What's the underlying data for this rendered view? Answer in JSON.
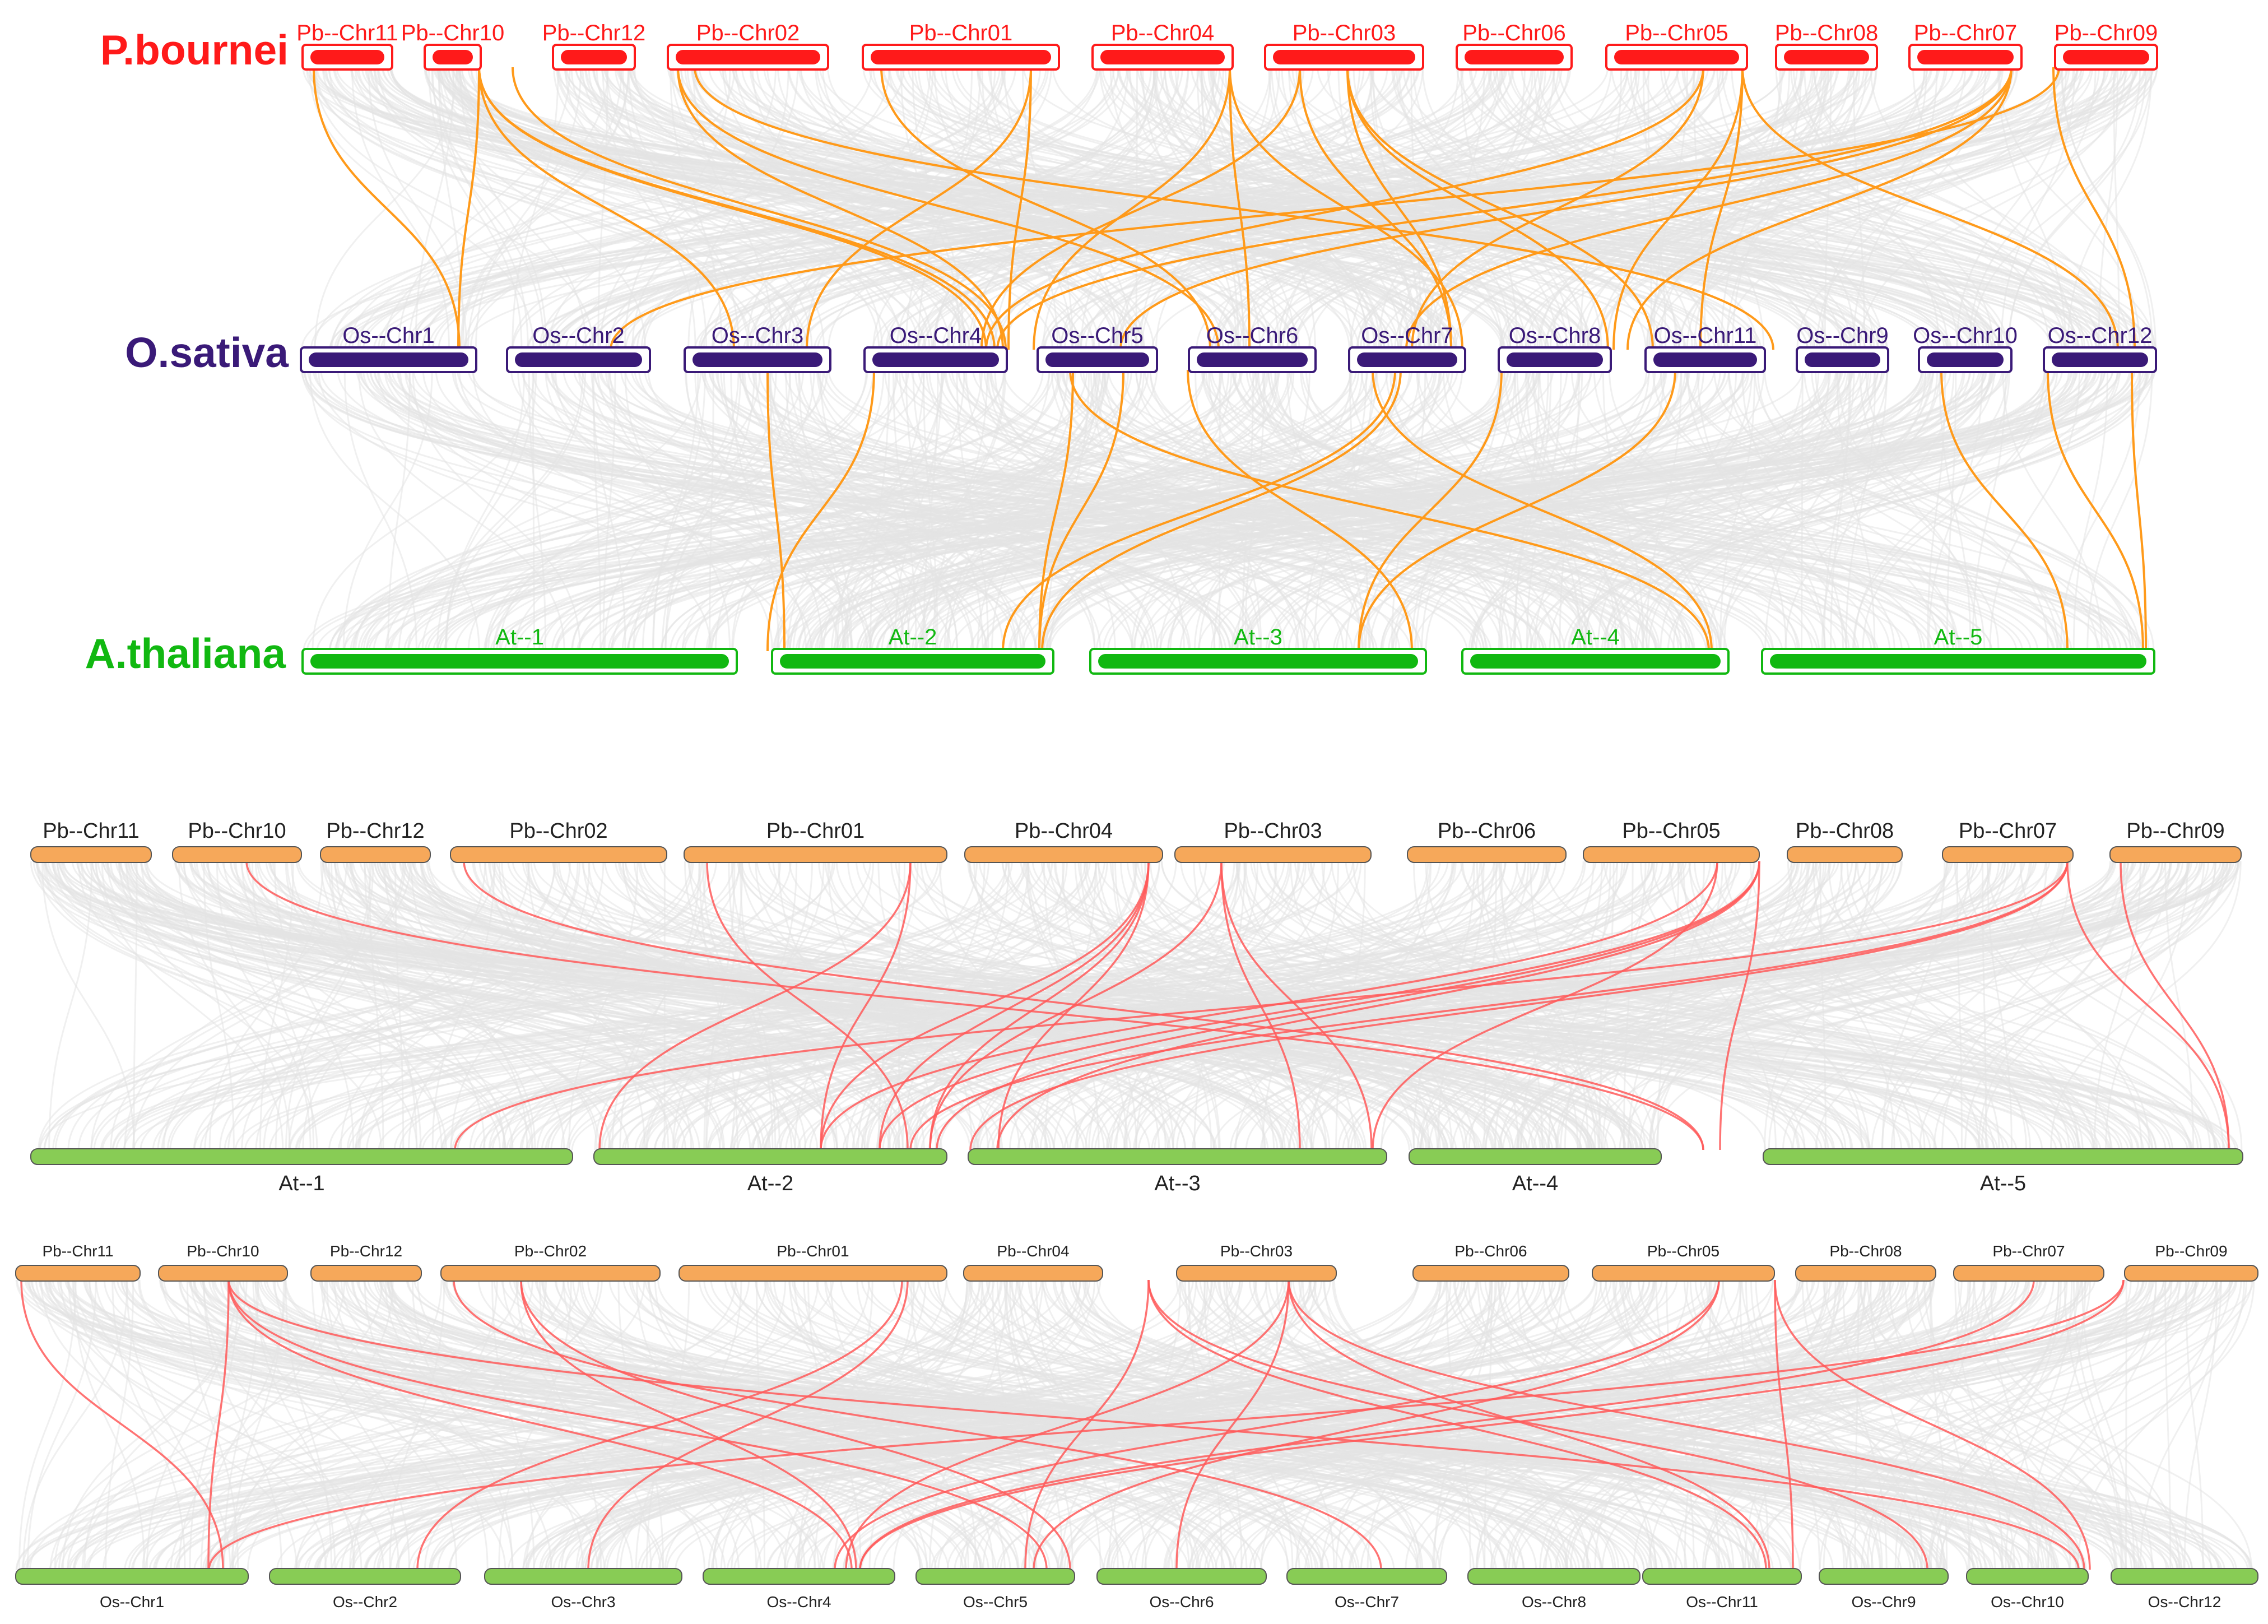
{
  "colors": {
    "p_bournei": "#ff1a1a",
    "o_sativa": "#3a1a78",
    "a_thaliana": "#11b811",
    "orange_link": "#ff9a1a",
    "red_link": "#ff5a5a",
    "bg_link": "#e3e3e3",
    "orange_chr": "#f6a85a",
    "green_chr": "#88cc55"
  },
  "panel1": {
    "species": {
      "top": "P.bournei",
      "middle": "O.sativa",
      "bottom": "A.thaliana"
    },
    "pb_chromosomes": [
      "Pb--Chr11",
      "Pb--Chr10",
      "Pb--Chr12",
      "Pb--Chr02",
      "Pb--Chr01",
      "Pb--Chr04",
      "Pb--Chr03",
      "Pb--Chr06",
      "Pb--Chr05",
      "Pb--Chr08",
      "Pb--Chr07",
      "Pb--Chr09"
    ],
    "os_chromosomes": [
      "Os--Chr1",
      "Os--Chr2",
      "Os--Chr3",
      "Os--Chr4",
      "Os--Chr5",
      "Os--Chr6",
      "Os--Chr7",
      "Os--Chr8",
      "Os--Chr11",
      "Os--Chr9",
      "Os--Chr10",
      "Os--Chr12"
    ],
    "at_chromosomes": [
      "At--1",
      "At--2",
      "At--3",
      "At--4",
      "At--5"
    ]
  },
  "panel2": {
    "pb_chromosomes": [
      "Pb--Chr11",
      "Pb--Chr10",
      "Pb--Chr12",
      "Pb--Chr02",
      "Pb--Chr01",
      "Pb--Chr04",
      "Pb--Chr03",
      "Pb--Chr06",
      "Pb--Chr05",
      "Pb--Chr08",
      "Pb--Chr07",
      "Pb--Chr09"
    ],
    "at_chromosomes": [
      "At--1",
      "At--2",
      "At--3",
      "At--4",
      "At--5"
    ]
  },
  "panel3": {
    "pb_chromosomes": [
      "Pb--Chr11",
      "Pb--Chr10",
      "Pb--Chr12",
      "Pb--Chr02",
      "Pb--Chr01",
      "Pb--Chr04",
      "Pb--Chr03",
      "Pb--Chr06",
      "Pb--Chr05",
      "Pb--Chr08",
      "Pb--Chr07",
      "Pb--Chr09"
    ],
    "os_chromosomes": [
      "Os--Chr1",
      "Os--Chr2",
      "Os--Chr3",
      "Os--Chr4",
      "Os--Chr5",
      "Os--Chr6",
      "Os--Chr7",
      "Os--Chr8",
      "Os--Chr11",
      "Os--Chr9",
      "Os--Chr10",
      "Os--Chr12"
    ]
  }
}
